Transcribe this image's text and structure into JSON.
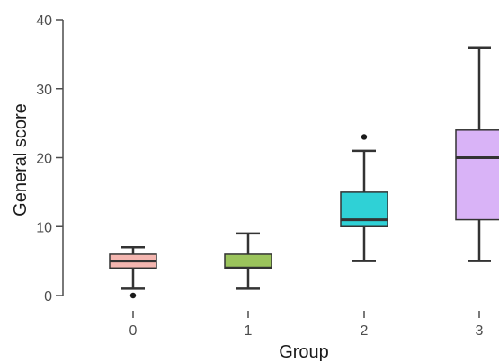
{
  "chart_data": {
    "type": "box",
    "xlabel": "Group",
    "ylabel": "General score",
    "ylim": [
      0,
      40
    ],
    "yticks": [
      0,
      10,
      20,
      30,
      40
    ],
    "categories": [
      "0",
      "1",
      "2",
      "3"
    ],
    "boxes": [
      {
        "category": "0",
        "whisker_low": 1,
        "q1": 4,
        "median": 5,
        "q3": 6,
        "whisker_high": 7,
        "outliers": [
          0
        ],
        "color": "#f4b6b0"
      },
      {
        "category": "1",
        "whisker_low": 1,
        "q1": 4,
        "median": 4,
        "q3": 6,
        "whisker_high": 9,
        "outliers": [],
        "color": "#9bc45c"
      },
      {
        "category": "2",
        "whisker_low": 5,
        "q1": 10,
        "median": 11,
        "q3": 15,
        "whisker_high": 21,
        "outliers": [
          23
        ],
        "color": "#2fd1d6"
      },
      {
        "category": "3",
        "whisker_low": 5,
        "q1": 11,
        "median": 20,
        "q3": 24,
        "whisker_high": 36,
        "outliers": [],
        "color": "#d9b3f7"
      }
    ],
    "grid": false,
    "legend": "none"
  }
}
